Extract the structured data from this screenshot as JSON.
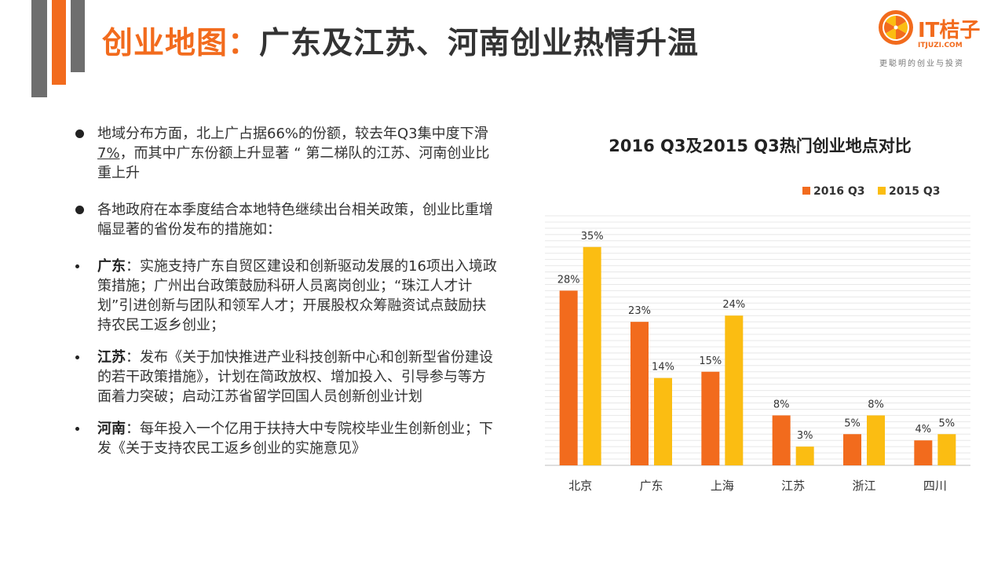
{
  "title": {
    "accent": "创业地图：",
    "main": "广东及江苏、河南创业热情升温"
  },
  "logo": {
    "name": "IT桔子",
    "domain": "ITJUZI.COM",
    "slogan": "更聪明的创业与投资"
  },
  "left": {
    "p1": {
      "before": "地域分布方面，北上广占据66%的份额，较去年Q3集中度下滑",
      "highlight": "7%",
      "after": "，而其中广东份额上升显著 “ 第二梯队的江苏、河南创业比重上升"
    },
    "p2": "各地政府在本季度结合本地特色继续出台相关政策，创业比重增幅显著的省份发布的措施如：",
    "items": [
      {
        "region": "广东",
        "text": "：实施支持广东自贸区建设和创新驱动发展的16项出入境政策措施；广州出台政策鼓励科研人员离岗创业；“珠江人才计划”引进创新与团队和领军人才；开展股权众筹融资试点鼓励扶持农民工返乡创业；"
      },
      {
        "region": "江苏",
        "text": "：发布《关于加快推进产业科技创新中心和创新型省份建设的若干政策措施》，计划在简政放权、增加投入、引导参与等方面着力突破；启动江苏省留学回国人员创新创业计划"
      },
      {
        "region": "河南",
        "text": "：每年投入一个亿用于扶持大中专院校毕业生创新创业；下发《关于支持农民工返乡创业的实施意见》"
      }
    ]
  },
  "colors": {
    "accent": "#f26b1d",
    "series1": "#f26b1d",
    "series2": "#fbbd12",
    "gray": "#6e6e6e"
  },
  "chart_data": {
    "type": "bar",
    "title": "2016 Q3及2015 Q3热门创业地点对比",
    "categories": [
      "北京",
      "广东",
      "上海",
      "江苏",
      "浙江",
      "四川"
    ],
    "series": [
      {
        "name": "2016 Q3",
        "values": [
          28,
          23,
          15,
          8,
          5,
          4
        ],
        "labels": [
          "28%",
          "23%",
          "15%",
          "8%",
          "5%",
          "4%"
        ]
      },
      {
        "name": "2015 Q3",
        "values": [
          35,
          14,
          24,
          3,
          8,
          5
        ],
        "labels": [
          "35%",
          "14%",
          "24%",
          "3%",
          "8%",
          "5%"
        ]
      }
    ],
    "ylim": [
      0,
      40
    ],
    "legend": "top-right",
    "grid": true
  }
}
